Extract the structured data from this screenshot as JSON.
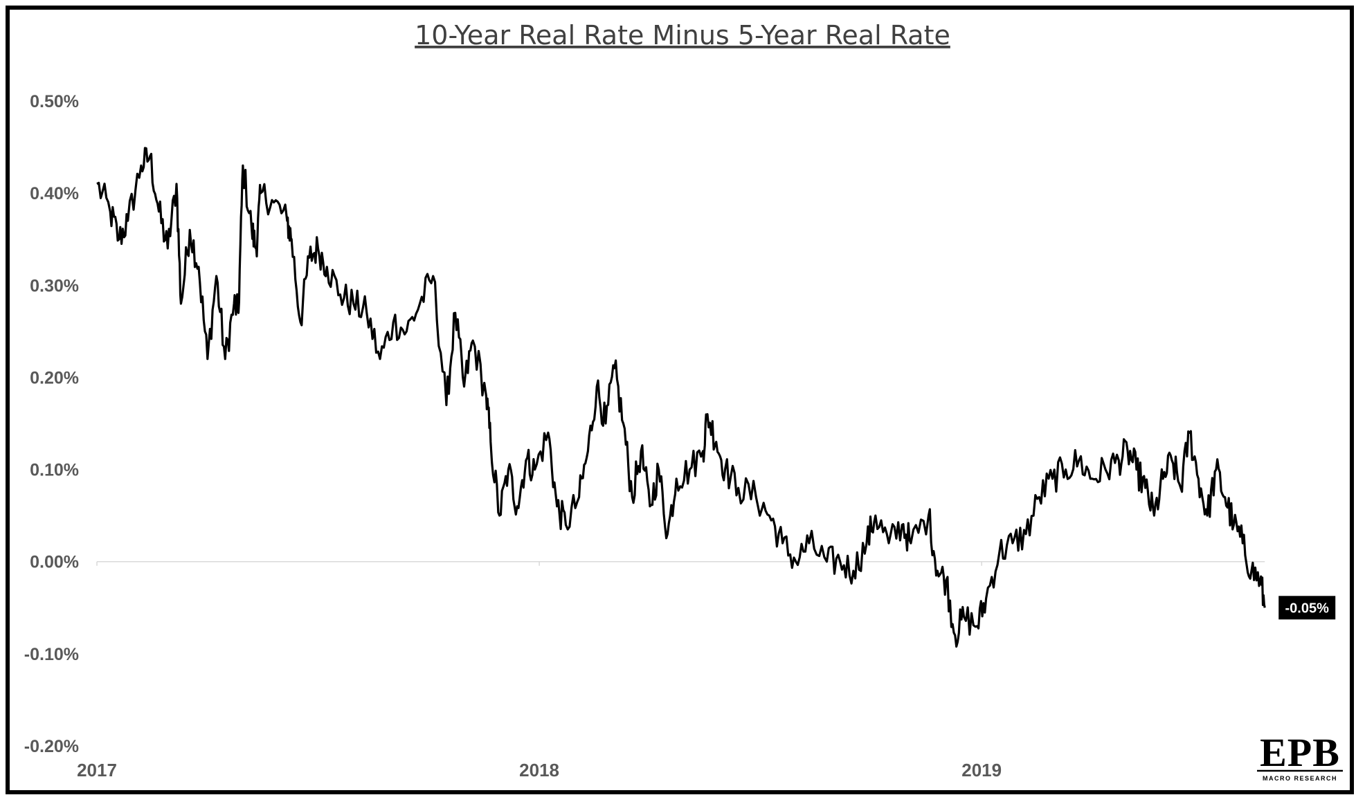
{
  "chart_data": {
    "type": "line",
    "title": "10-Year Real Rate Minus 5-Year Real Rate",
    "xlabel": "",
    "ylabel": "",
    "ylim": [
      -0.2,
      0.5
    ],
    "yticks": [
      "0.50%",
      "0.40%",
      "0.30%",
      "0.20%",
      "0.10%",
      "0.00%",
      "-0.10%",
      "-0.20%"
    ],
    "ytick_values": [
      0.5,
      0.4,
      0.3,
      0.2,
      0.1,
      0.0,
      -0.1,
      -0.2
    ],
    "xlim": [
      2017.0,
      2019.66
    ],
    "xticks": [
      "2017",
      "2018",
      "2019"
    ],
    "xtick_values": [
      2017.0,
      2018.0,
      2019.0
    ],
    "legend": "none",
    "grid": "zero-line only",
    "end_label": "-0.05%",
    "series": [
      {
        "name": "10-Year Real Rate Minus 5-Year Real Rate",
        "color": "#000000",
        "keypoints": [
          [
            2017.0,
            0.41
          ],
          [
            2017.03,
            0.38
          ],
          [
            2017.05,
            0.35
          ],
          [
            2017.07,
            0.37
          ],
          [
            2017.1,
            0.43
          ],
          [
            2017.12,
            0.44
          ],
          [
            2017.14,
            0.38
          ],
          [
            2017.16,
            0.34
          ],
          [
            2017.18,
            0.41
          ],
          [
            2017.19,
            0.28
          ],
          [
            2017.21,
            0.36
          ],
          [
            2017.23,
            0.32
          ],
          [
            2017.25,
            0.22
          ],
          [
            2017.27,
            0.31
          ],
          [
            2017.29,
            0.22
          ],
          [
            2017.31,
            0.28
          ],
          [
            2017.32,
            0.27
          ],
          [
            2017.33,
            0.43
          ],
          [
            2017.35,
            0.36
          ],
          [
            2017.36,
            0.34
          ],
          [
            2017.37,
            0.4
          ],
          [
            2017.4,
            0.39
          ],
          [
            2017.43,
            0.37
          ],
          [
            2017.44,
            0.35
          ],
          [
            2017.46,
            0.26
          ],
          [
            2017.48,
            0.33
          ],
          [
            2017.5,
            0.34
          ],
          [
            2017.52,
            0.32
          ],
          [
            2017.55,
            0.29
          ],
          [
            2017.58,
            0.28
          ],
          [
            2017.61,
            0.27
          ],
          [
            2017.64,
            0.22
          ],
          [
            2017.67,
            0.26
          ],
          [
            2017.7,
            0.25
          ],
          [
            2017.73,
            0.28
          ],
          [
            2017.76,
            0.31
          ],
          [
            2017.79,
            0.17
          ],
          [
            2017.81,
            0.27
          ],
          [
            2017.83,
            0.19
          ],
          [
            2017.85,
            0.24
          ],
          [
            2017.88,
            0.18
          ],
          [
            2017.89,
            0.13
          ],
          [
            2017.91,
            0.05
          ],
          [
            2017.93,
            0.1
          ],
          [
            2017.95,
            0.06
          ],
          [
            2017.97,
            0.11
          ],
          [
            2017.99,
            0.1
          ],
          [
            2018.02,
            0.14
          ],
          [
            2018.04,
            0.06
          ],
          [
            2018.06,
            0.04
          ],
          [
            2018.09,
            0.07
          ],
          [
            2018.11,
            0.12
          ],
          [
            2018.13,
            0.19
          ],
          [
            2018.15,
            0.15
          ],
          [
            2018.17,
            0.21
          ],
          [
            2018.19,
            0.15
          ],
          [
            2018.21,
            0.07
          ],
          [
            2018.23,
            0.12
          ],
          [
            2018.25,
            0.06
          ],
          [
            2018.27,
            0.1
          ],
          [
            2018.29,
            0.03
          ],
          [
            2018.31,
            0.09
          ],
          [
            2018.34,
            0.1
          ],
          [
            2018.37,
            0.12
          ],
          [
            2018.38,
            0.16
          ],
          [
            2018.4,
            0.13
          ],
          [
            2018.42,
            0.1
          ],
          [
            2018.45,
            0.08
          ],
          [
            2018.49,
            0.07
          ],
          [
            2018.52,
            0.05
          ],
          [
            2018.55,
            0.02
          ],
          [
            2018.58,
            0.0
          ],
          [
            2018.61,
            0.02
          ],
          [
            2018.65,
            0.0
          ],
          [
            2018.68,
            0.0
          ],
          [
            2018.71,
            -0.01
          ],
          [
            2018.74,
            0.02
          ],
          [
            2018.76,
            0.05
          ],
          [
            2018.79,
            0.02
          ],
          [
            2018.82,
            0.04
          ],
          [
            2018.84,
            0.02
          ],
          [
            2018.88,
            0.05
          ],
          [
            2018.9,
            -0.01
          ],
          [
            2018.92,
            -0.02
          ],
          [
            2018.94,
            -0.08
          ],
          [
            2018.96,
            -0.06
          ],
          [
            2018.99,
            -0.07
          ],
          [
            2019.01,
            -0.04
          ],
          [
            2019.04,
            0.01
          ],
          [
            2019.07,
            0.02
          ],
          [
            2019.1,
            0.03
          ],
          [
            2019.13,
            0.07
          ],
          [
            2019.16,
            0.09
          ],
          [
            2019.19,
            0.1
          ],
          [
            2019.22,
            0.11
          ],
          [
            2019.25,
            0.09
          ],
          [
            2019.28,
            0.1
          ],
          [
            2019.31,
            0.11
          ],
          [
            2019.33,
            0.12
          ],
          [
            2019.35,
            0.1
          ],
          [
            2019.37,
            0.08
          ],
          [
            2019.39,
            0.05
          ],
          [
            2019.41,
            0.09
          ],
          [
            2019.43,
            0.11
          ],
          [
            2019.45,
            0.08
          ],
          [
            2019.47,
            0.14
          ],
          [
            2019.49,
            0.09
          ],
          [
            2019.51,
            0.05
          ],
          [
            2019.53,
            0.1
          ],
          [
            2019.55,
            0.07
          ],
          [
            2019.57,
            0.04
          ],
          [
            2019.59,
            0.02
          ],
          [
            2019.61,
            -0.01
          ],
          [
            2019.63,
            -0.02
          ],
          [
            2019.64,
            -0.05
          ]
        ]
      }
    ]
  },
  "logo": {
    "main": "EPB",
    "sub": "MACRO RESEARCH"
  }
}
